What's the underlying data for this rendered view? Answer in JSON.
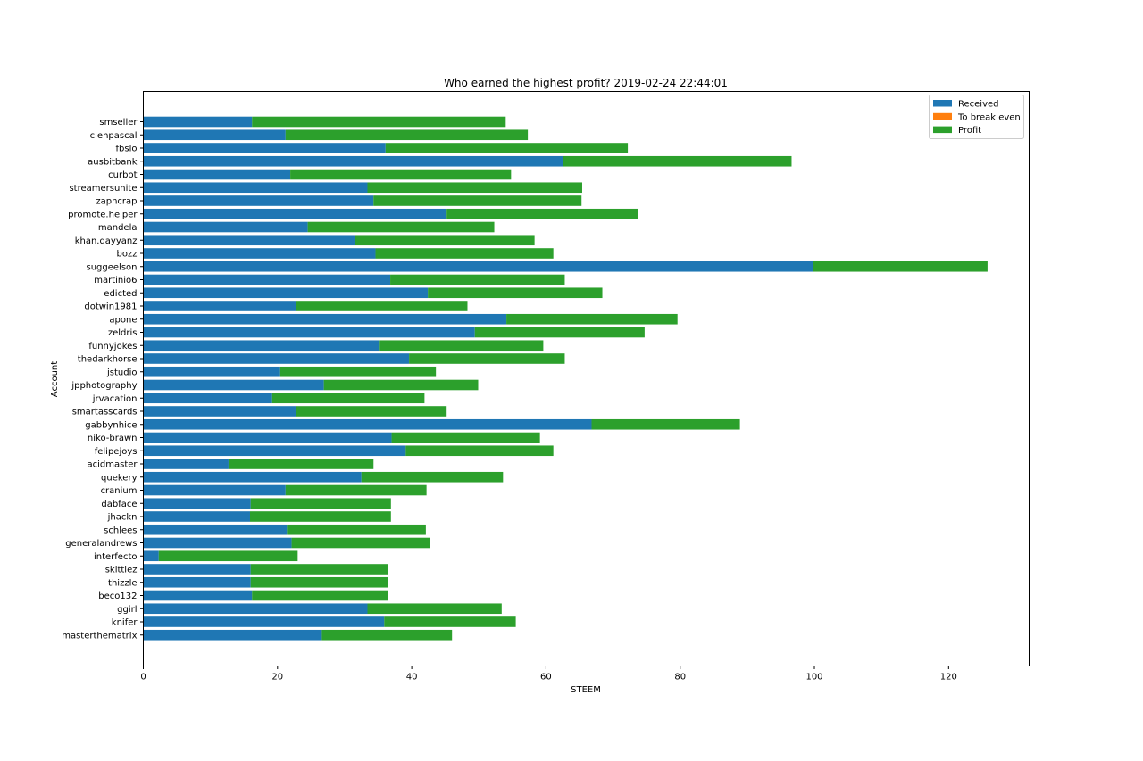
{
  "chart_data": {
    "type": "bar",
    "orientation": "horizontal",
    "stacked": true,
    "title": "Who earned the highest profit? 2019-02-24 22:44:01",
    "xlabel": "STEEM",
    "ylabel": "Account",
    "xlim": [
      0,
      132
    ],
    "xticks": [
      0,
      20,
      40,
      60,
      80,
      100,
      120
    ],
    "grid": false,
    "legend_position": "top-right",
    "categories": [
      "smseller",
      "cienpascal",
      "fbslo",
      "ausbitbank",
      "curbot",
      "streamersunite",
      "zapncrap",
      "promote.helper",
      "mandela",
      "khan.dayyanz",
      "bozz",
      "suggeelson",
      "martinio6",
      "edicted",
      "dotwin1981",
      "apone",
      "zeldris",
      "funnyjokes",
      "thedarkhorse",
      "jstudio",
      "jpphotography",
      "jrvacation",
      "smartasscards",
      "gabbynhice",
      "niko-brawn",
      "felipejoys",
      "acidmaster",
      "quekery",
      "cranium",
      "dabface",
      "jhackn",
      "schlees",
      "generalandrews",
      "interfecto",
      "skittlez",
      "thizzle",
      "beco132",
      "ggirl",
      "knifer",
      "masterthematrix"
    ],
    "series": [
      {
        "name": "Received",
        "color": "#1f77b4",
        "values": [
          16.2,
          21.2,
          36.1,
          62.6,
          21.9,
          33.4,
          34.3,
          45.2,
          24.5,
          31.6,
          34.6,
          99.8,
          36.8,
          42.4,
          22.7,
          54.1,
          49.4,
          35.1,
          39.6,
          20.4,
          26.9,
          19.2,
          22.8,
          66.8,
          37.0,
          39.1,
          12.7,
          32.5,
          21.2,
          16.0,
          15.9,
          21.4,
          22.1,
          2.3,
          16.0,
          16.0,
          16.2,
          33.4,
          35.9,
          26.6
        ]
      },
      {
        "name": "To break even",
        "color": "#ff7f0e",
        "values": [
          0,
          0,
          0,
          0,
          0,
          0,
          0,
          0,
          0,
          0,
          0,
          0,
          0,
          0,
          0,
          0,
          0,
          0,
          0,
          0,
          0,
          0,
          0,
          0,
          0,
          0,
          0,
          0,
          0,
          0,
          0,
          0,
          0,
          0,
          0,
          0,
          0,
          0,
          0,
          0
        ]
      },
      {
        "name": "Profit",
        "color": "#2ca02c",
        "values": [
          37.8,
          36.1,
          36.1,
          34.0,
          32.9,
          32.0,
          31.0,
          28.5,
          27.8,
          26.7,
          26.5,
          26.0,
          26.0,
          26.0,
          25.6,
          25.5,
          25.3,
          24.5,
          23.2,
          23.2,
          23.0,
          22.7,
          22.4,
          22.1,
          22.1,
          22.0,
          21.6,
          21.1,
          21.0,
          20.9,
          21.0,
          20.7,
          20.6,
          20.7,
          20.4,
          20.4,
          20.3,
          20.0,
          19.6,
          19.4
        ]
      }
    ]
  }
}
